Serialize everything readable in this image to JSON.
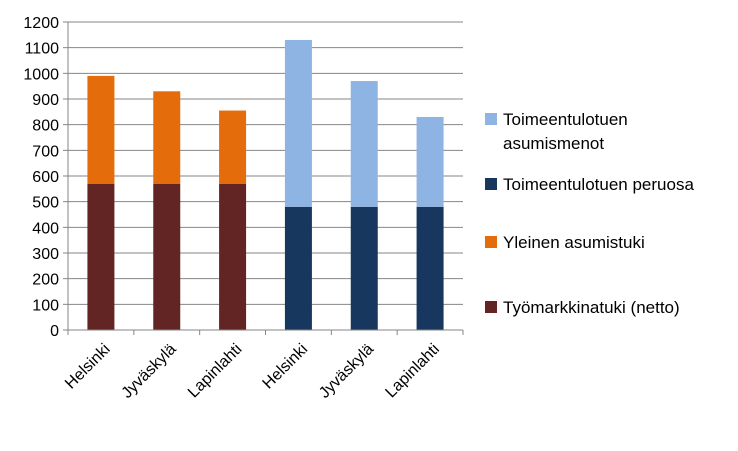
{
  "chart_data": {
    "type": "bar",
    "stacked": true,
    "categories": [
      "Helsinki",
      "Jyväskylä",
      "Lapinlahti",
      "Helsinki",
      "Jyväskylä",
      "Lapinlahti"
    ],
    "series": [
      {
        "name": "Työmarkkinatuki (netto)",
        "color": "#632523",
        "values": [
          570,
          570,
          570,
          0,
          0,
          0
        ]
      },
      {
        "name": "Yleinen asumistuki",
        "color": "#E46C0A",
        "values": [
          420,
          360,
          285,
          0,
          0,
          0
        ]
      },
      {
        "name": "Toimeentulotuen peruosa",
        "color": "#17375E",
        "values": [
          0,
          0,
          0,
          480,
          480,
          480
        ]
      },
      {
        "name": "Toimeentulotuen asumismenot",
        "color": "#8EB4E3",
        "values": [
          0,
          0,
          0,
          650,
          490,
          350
        ]
      }
    ],
    "ylim": [
      0,
      1200
    ],
    "yticks": [
      "0",
      "100",
      "200",
      "300",
      "400",
      "500",
      "600",
      "700",
      "800",
      "900",
      "1000",
      "1100",
      "1200"
    ],
    "grid": true,
    "legend_position": "right",
    "legend_order": [
      "Toimeentulotuen asumismenot",
      "Toimeentulotuen peruosa",
      "Yleinen asumistuki",
      "Työmarkkinatuki (netto)"
    ],
    "title": "",
    "xlabel": "",
    "ylabel": ""
  }
}
